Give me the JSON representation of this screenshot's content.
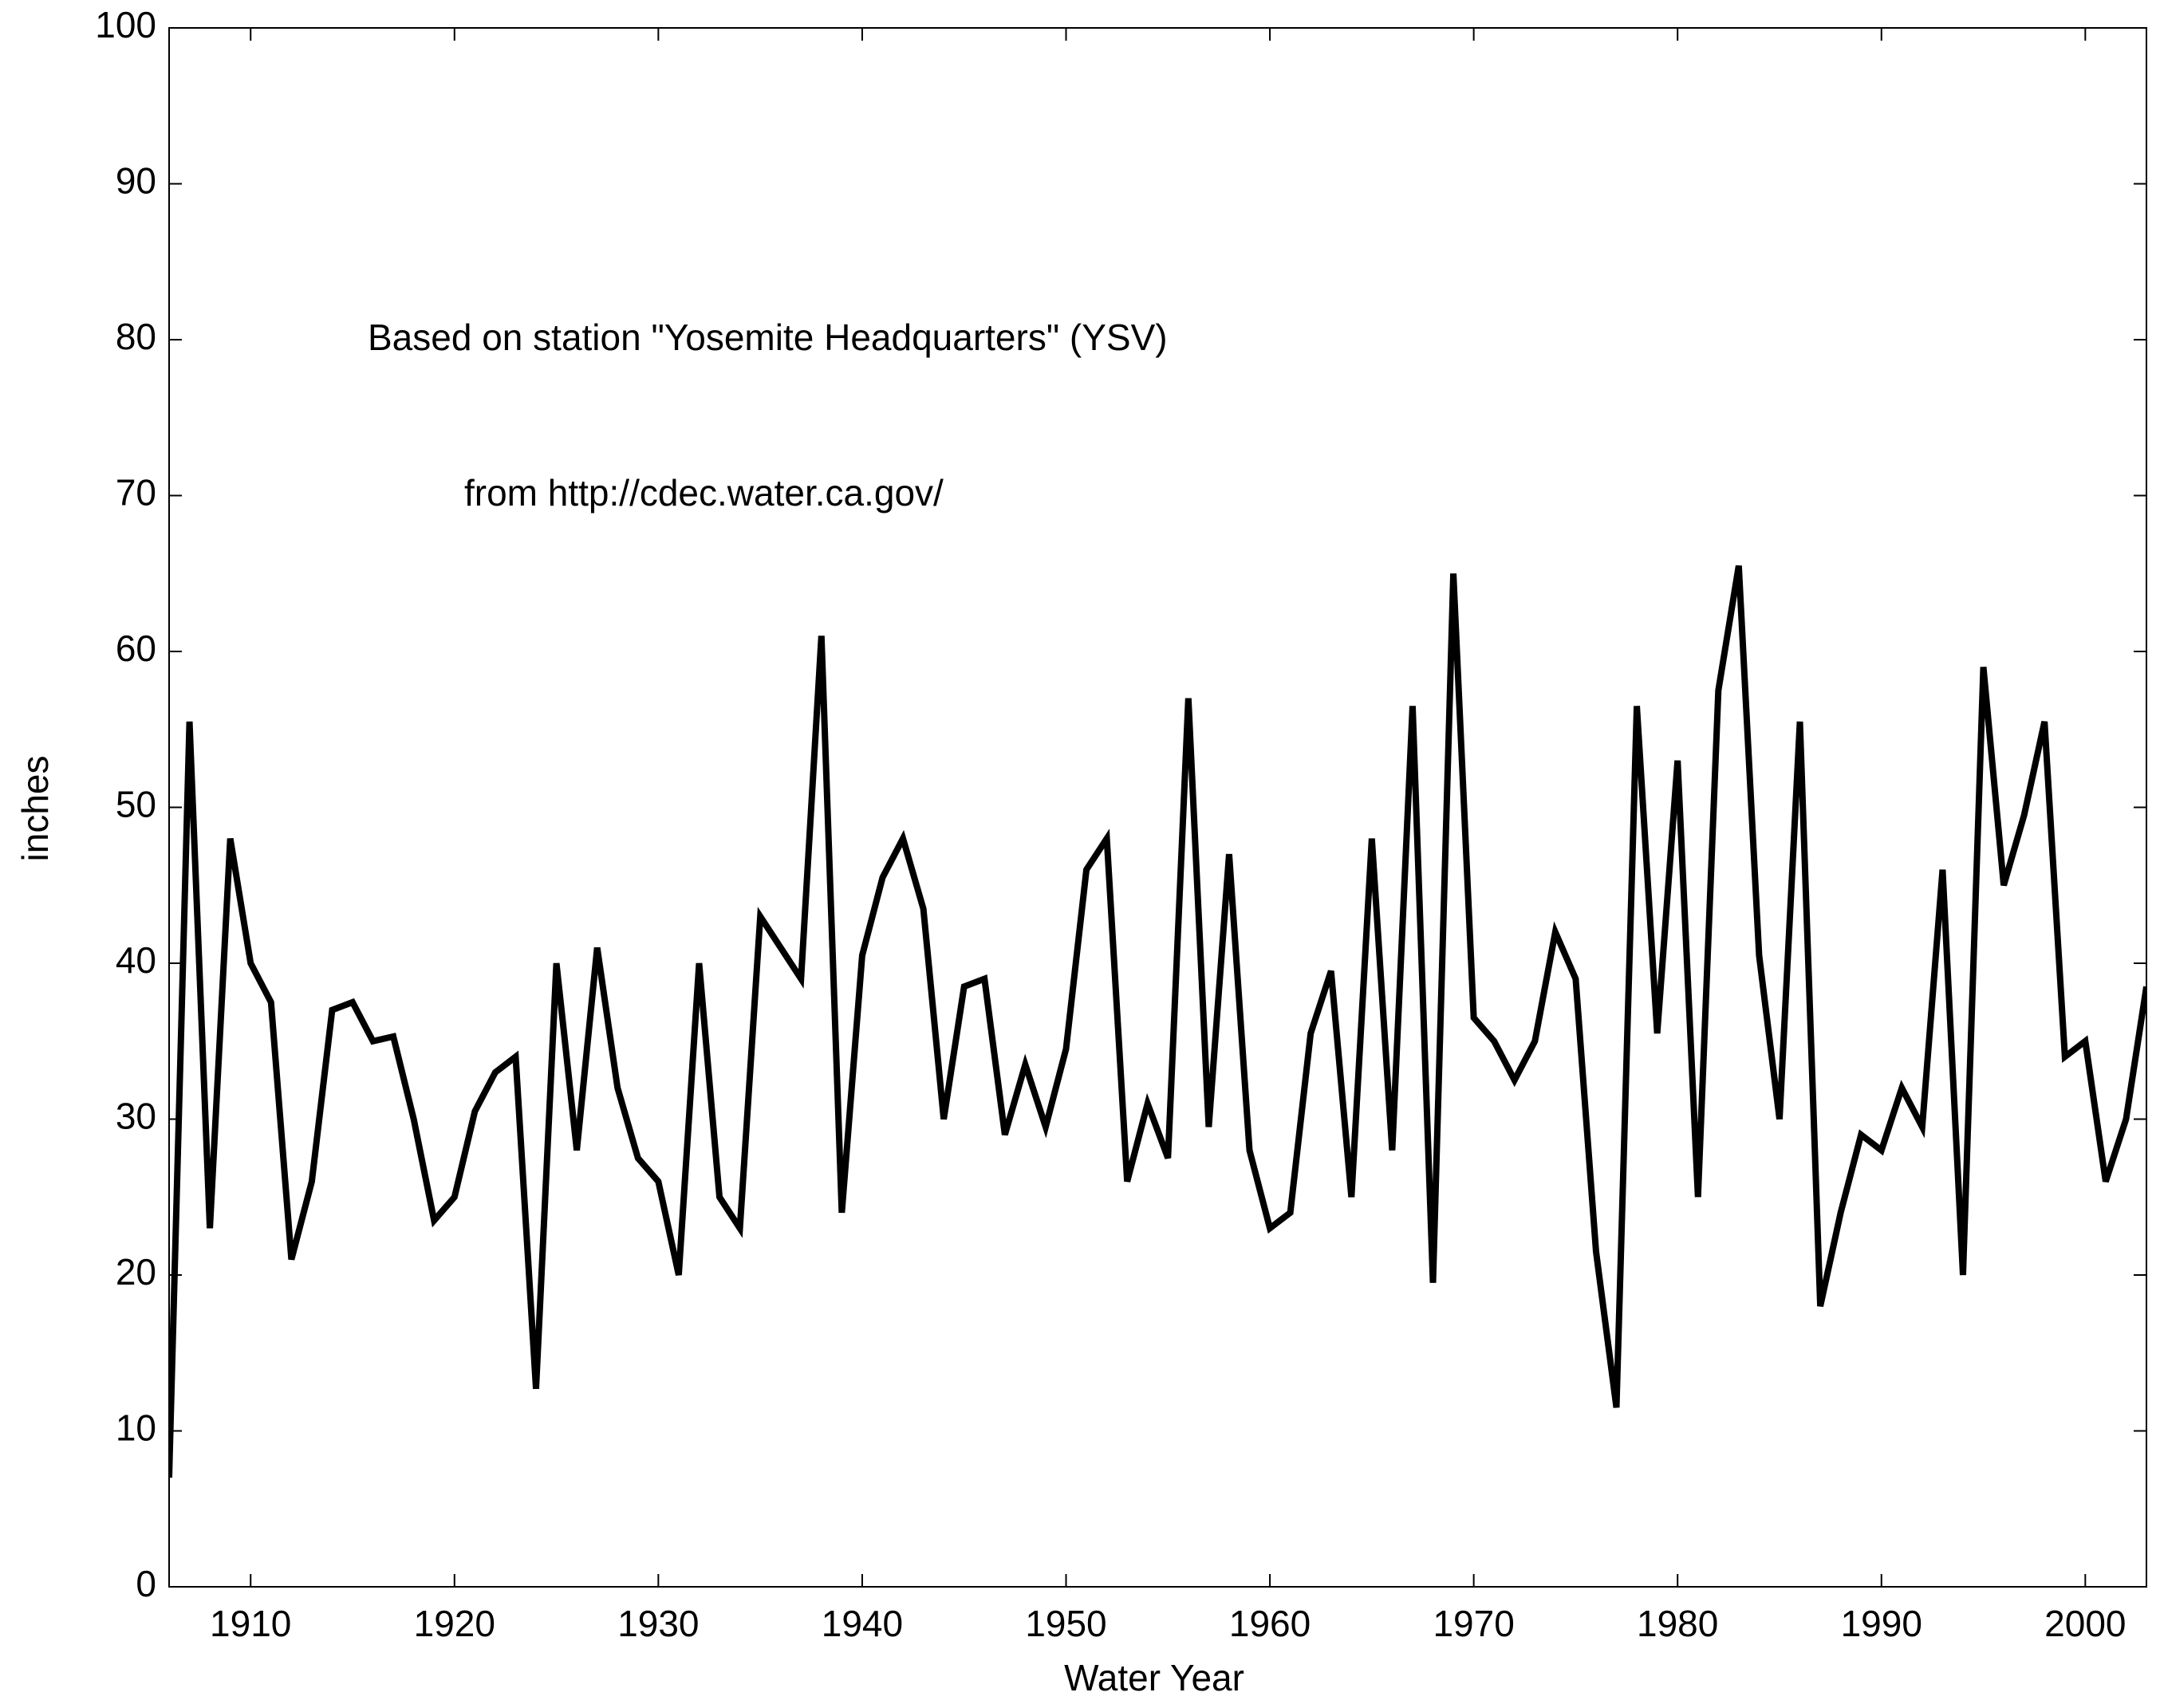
{
  "chart_data": {
    "type": "line",
    "xlabel": "Water Year",
    "ylabel": "inches",
    "annotations": [
      "Based on station \"Yosemite Headquarters\" (YSV)",
      "from http://cdec.water.ca.gov/"
    ],
    "x": [
      1906,
      1907,
      1908,
      1909,
      1910,
      1911,
      1912,
      1913,
      1914,
      1915,
      1916,
      1917,
      1918,
      1919,
      1920,
      1921,
      1922,
      1923,
      1924,
      1925,
      1926,
      1927,
      1928,
      1929,
      1930,
      1931,
      1932,
      1933,
      1934,
      1935,
      1936,
      1937,
      1938,
      1939,
      1940,
      1941,
      1942,
      1943,
      1944,
      1945,
      1946,
      1947,
      1948,
      1949,
      1950,
      1951,
      1952,
      1953,
      1954,
      1955,
      1956,
      1957,
      1958,
      1959,
      1960,
      1961,
      1962,
      1963,
      1964,
      1965,
      1966,
      1967,
      1968,
      1969,
      1970,
      1971,
      1972,
      1973,
      1974,
      1975,
      1976,
      1977,
      1978,
      1979,
      1980,
      1981,
      1982,
      1983,
      1984,
      1985,
      1986,
      1987,
      1988,
      1989,
      1990,
      1991,
      1992,
      1993,
      1994,
      1995,
      1996,
      1997,
      1998,
      1999,
      2000,
      2001,
      2002,
      2003
    ],
    "series": [
      {
        "color": "#000000",
        "values": [
          7,
          55.5,
          23,
          48,
          40,
          37.5,
          21,
          26,
          37,
          37.5,
          35,
          35.3,
          30,
          23.5,
          25,
          30.5,
          33,
          34,
          12.7,
          40,
          28,
          41,
          32,
          27.5,
          26,
          20,
          40,
          25,
          23,
          43,
          41,
          39,
          61,
          24,
          40.5,
          45.5,
          48,
          43.5,
          30,
          38.5,
          39,
          29,
          33.5,
          29.5,
          34.5,
          46,
          48,
          26,
          31,
          27.5,
          57,
          29.5,
          47,
          28,
          23,
          24,
          35.5,
          39.5,
          25,
          48,
          28,
          56.5,
          19.5,
          65,
          36.5,
          35,
          32.5,
          35,
          42,
          39,
          21.5,
          11.5,
          56.5,
          35.5,
          53,
          25,
          57.5,
          65.5,
          40.5,
          30,
          55.5,
          18,
          24,
          29,
          28,
          32,
          29.5,
          46,
          20,
          59,
          45,
          49.5,
          55.5,
          34,
          35,
          26,
          30,
          38.5
        ]
      }
    ],
    "xlim": [
      1906,
      2003
    ],
    "xticks": [
      1910,
      1920,
      1930,
      1940,
      1950,
      1960,
      1970,
      1980,
      1990,
      2000
    ],
    "ylim": [
      0,
      100
    ],
    "yticks": [
      0,
      10,
      20,
      30,
      40,
      50,
      60,
      70,
      80,
      90,
      100
    ],
    "grid": false
  }
}
